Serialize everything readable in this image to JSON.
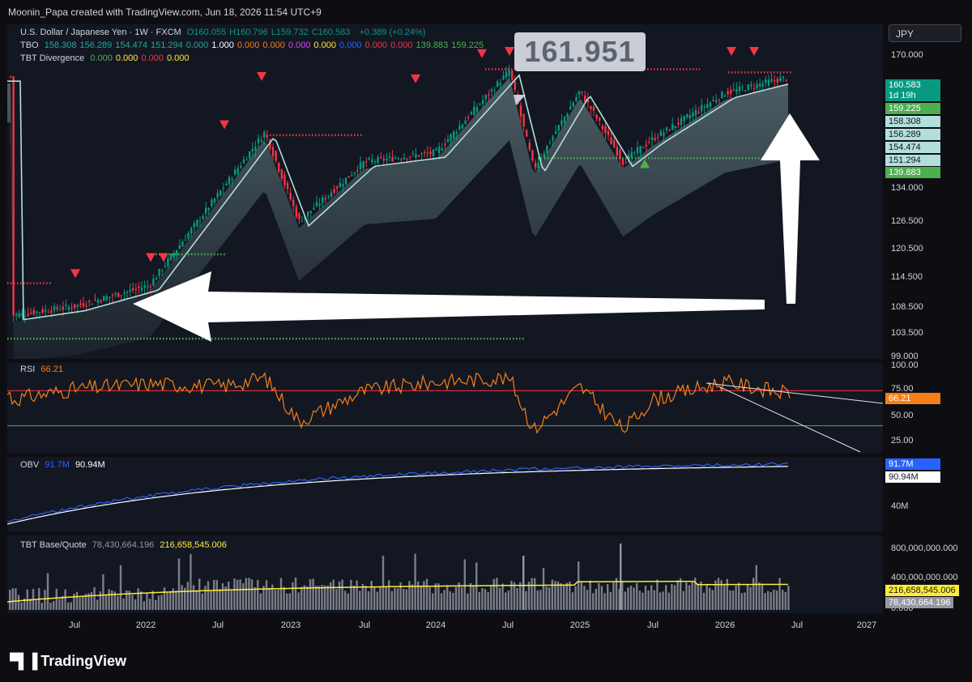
{
  "header": {
    "publisher": "Moonin_Papa created with TradingView.com, Jun 18, 2026 11:54 UTC+9"
  },
  "brand": {
    "name": "TradingView",
    "icon": "tradingview-logo-icon"
  },
  "main_panel": {
    "legend": {
      "symbol": "U.S. Dollar / Japanese Yen · 1W · FXCM",
      "ohlc": [
        {
          "k": "O",
          "v": "160.055"
        },
        {
          "k": "H",
          "v": "160.796"
        },
        {
          "k": "L",
          "v": "159.732"
        },
        {
          "k": "C",
          "v": "160.583"
        }
      ],
      "change": "+0.389 (+0.24%)",
      "tbo_label": "TBO",
      "tbo_values": [
        {
          "v": "158.308",
          "c": "#26a69a"
        },
        {
          "v": "156.289",
          "c": "#26a69a"
        },
        {
          "v": "154.474",
          "c": "#26a69a"
        },
        {
          "v": "151.294",
          "c": "#26a69a"
        },
        {
          "v": "0.000",
          "c": "#26a69a"
        },
        {
          "v": "1.000",
          "c": "#ffffff"
        },
        {
          "v": "0.000",
          "c": "#f57f17"
        },
        {
          "v": "0.000",
          "c": "#f57f17"
        },
        {
          "v": "0.000",
          "c": "#e040fb"
        },
        {
          "v": "0.000",
          "c": "#ffeb3b"
        },
        {
          "v": "0.000",
          "c": "#2962ff"
        },
        {
          "v": "0.000",
          "c": "#f23645"
        },
        {
          "v": "0.000",
          "c": "#f23645"
        },
        {
          "v": "139.883",
          "c": "#4caf50"
        },
        {
          "v": "159.225",
          "c": "#4caf50"
        }
      ],
      "div_label": "TBT Divergence",
      "div_values": [
        {
          "v": "0.000",
          "c": "#4caf50"
        },
        {
          "v": "0.000",
          "c": "#ffeb3b"
        },
        {
          "v": "0.000",
          "c": "#f23645"
        },
        {
          "v": "0.000",
          "c": "#ffeb3b"
        }
      ]
    },
    "currency": "JPY",
    "annotation_label": "161.951",
    "price_tags": [
      {
        "v": "160.583",
        "bg": "#089981",
        "fg": "#ffffff",
        "y": 105
      },
      {
        "v": "1d 19h",
        "bg": "#089981",
        "fg": "#ffffff",
        "y": 118
      },
      {
        "v": "159.225",
        "bg": "#4caf50",
        "fg": "#ffffff",
        "y": 134
      },
      {
        "v": "158.308",
        "bg": "#b2dfdb",
        "fg": "#131722",
        "y": 150
      },
      {
        "v": "156.289",
        "bg": "#b2dfdb",
        "fg": "#131722",
        "y": 166
      },
      {
        "v": "154.474",
        "bg": "#b2dfdb",
        "fg": "#131722",
        "y": 182
      },
      {
        "v": "151.294",
        "bg": "#b2dfdb",
        "fg": "#131722",
        "y": 198
      },
      {
        "v": "139.883",
        "bg": "#4caf50",
        "fg": "#ffffff",
        "y": 213
      }
    ],
    "y_ticks": [
      "170.000",
      "134.000",
      "126.500",
      "120.500",
      "114.500",
      "108.500",
      "103.500",
      "99.000"
    ]
  },
  "rsi_panel": {
    "label": "RSI",
    "value": "66.21",
    "y_ticks": [
      "100.00",
      "75.00",
      "50.00",
      "25.00"
    ],
    "tag": {
      "v": "66.21",
      "bg": "#f57f17",
      "fg": "#ffffff"
    }
  },
  "obv_panel": {
    "label": "OBV",
    "v1": "91.7M",
    "v2": "90.94M",
    "y_ticks": [
      "40M"
    ],
    "tags": [
      {
        "v": "91.7M",
        "bg": "#2962ff",
        "fg": "#ffffff"
      },
      {
        "v": "90.94M",
        "bg": "#ffffff",
        "fg": "#131722"
      }
    ]
  },
  "volume_panel": {
    "label": "TBT Base/Quote",
    "v1": "78,430,664.196",
    "v2": "216,658,545.006",
    "y_ticks": [
      "800,000,000.000",
      "400,000,000.000",
      "0.000"
    ],
    "tags": [
      {
        "v": "216,658,545.006",
        "bg": "#ffeb3b",
        "fg": "#131722"
      },
      {
        "v": "78,430,664.196",
        "bg": "#9598a1",
        "fg": "#ffffff"
      }
    ]
  },
  "x_axis": [
    "Jul",
    "2022",
    "Jul",
    "2023",
    "Jul",
    "2024",
    "Jul",
    "2025",
    "Jul",
    "2026",
    "Jul",
    "2027"
  ],
  "chart_data": {
    "type": "line",
    "title": "U.S. Dollar / Japanese Yen · 1W · FXCM",
    "x": [
      "2021-03",
      "2021-07",
      "2022-01",
      "2022-07",
      "2022-10",
      "2023-01",
      "2023-07",
      "2024-01",
      "2024-07",
      "2024-09",
      "2025-01",
      "2025-04",
      "2025-07",
      "2026-01",
      "2026-06"
    ],
    "series": [
      {
        "name": "USD/JPY",
        "values": [
          108.5,
          110.5,
          115.0,
          136.0,
          148.5,
          129.0,
          142.0,
          144.0,
          161.9,
          140.5,
          157.5,
          142.0,
          147.0,
          157.0,
          160.583
        ]
      },
      {
        "name": "RSI",
        "values": [
          60,
          72,
          78,
          75,
          85,
          35,
          70,
          80,
          85,
          25,
          75,
          25,
          60,
          80,
          66.21
        ]
      }
    ],
    "ylim": [
      99,
      172
    ],
    "rsi_levels": [
      70,
      30
    ],
    "annotations": [
      "161.951"
    ]
  }
}
